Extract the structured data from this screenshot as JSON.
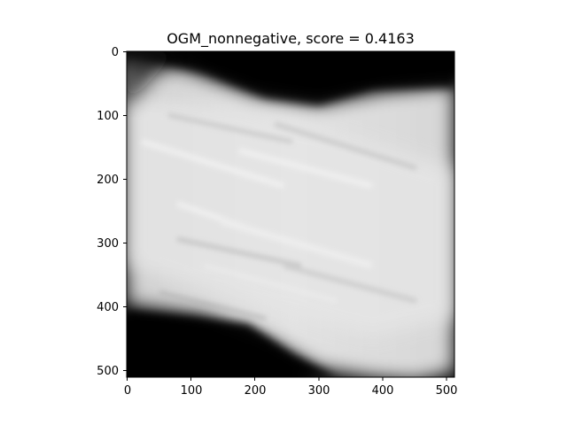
{
  "figure": {
    "title": "OGM_nonnegative, score = 0.4163"
  },
  "image_panel": {
    "colormap": "gray",
    "background": "#000000"
  },
  "axes": {
    "x_ticks": [
      "0",
      "100",
      "200",
      "300",
      "400",
      "500"
    ],
    "y_ticks": [
      "0",
      "100",
      "200",
      "300",
      "400",
      "500"
    ],
    "x_range": [
      0,
      512
    ],
    "y_range": [
      0,
      512
    ]
  }
}
